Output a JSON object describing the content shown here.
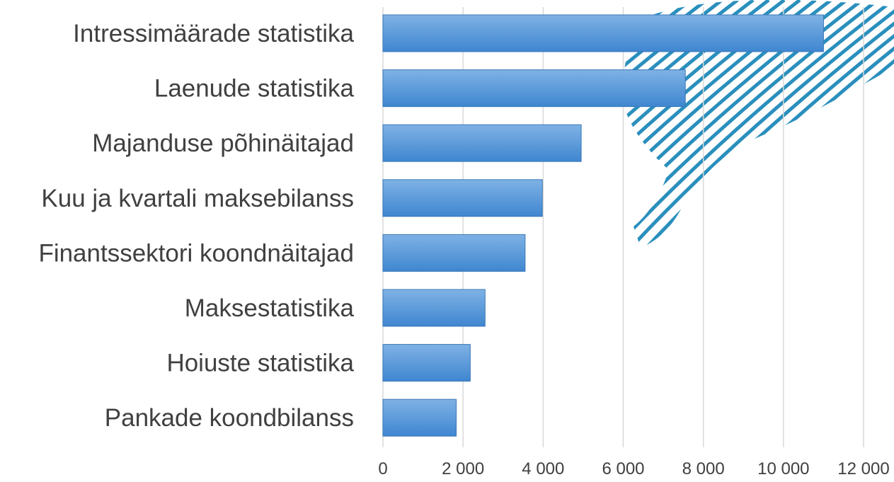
{
  "chart_data": {
    "type": "bar",
    "orientation": "horizontal",
    "title": "",
    "xlabel": "",
    "ylabel": "",
    "categories": [
      "Intressimäärade statistika",
      "Laenude statistika",
      "Majanduse põhinäitajad",
      "Kuu ja kvartali maksebilanss",
      "Finantssektori koondnäitajad",
      "Maksestatistika",
      "Hoiuste statistika",
      "Pankade koondbilanss"
    ],
    "values": [
      11000,
      7550,
      4950,
      3980,
      3550,
      2550,
      2180,
      1830
    ],
    "xlim": [
      0,
      12000
    ],
    "xticks": [
      0,
      2000,
      4000,
      6000,
      8000,
      10000,
      12000
    ],
    "xtick_labels": [
      "0",
      "2 000",
      "4 000",
      "6 000",
      "8 000",
      "10 000",
      "12 000"
    ],
    "grid": true,
    "legend": "none",
    "colors": {
      "bar_top": "#7fb2e5",
      "bar_bottom": "#3f86d0",
      "bar_edge": "#3a78b8",
      "grid": "#d9d9d9",
      "text": "#404040",
      "decoration": "#2a8fbd"
    }
  }
}
